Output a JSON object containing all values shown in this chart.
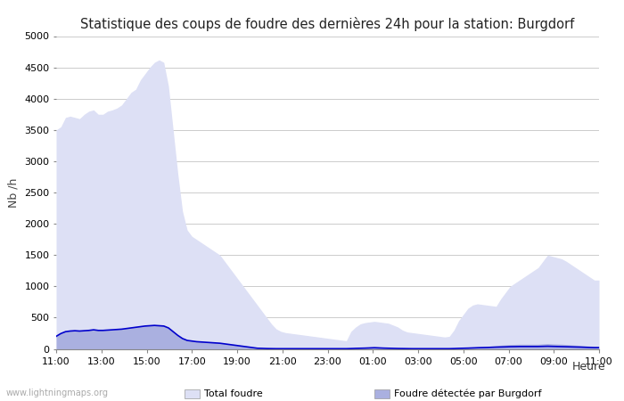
{
  "title": "Statistique des coups de foudre des dernières 24h pour la station: Burgdorf",
  "xlabel": "Heure",
  "ylabel": "Nb /h",
  "ylim": [
    0,
    5000
  ],
  "yticks": [
    0,
    500,
    1000,
    1500,
    2000,
    2500,
    3000,
    3500,
    4000,
    4500,
    5000
  ],
  "x_labels": [
    "11:00",
    "13:00",
    "15:00",
    "17:00",
    "19:00",
    "21:00",
    "23:00",
    "01:00",
    "03:00",
    "05:00",
    "07:00",
    "09:00",
    "11:00"
  ],
  "background_color": "#ffffff",
  "grid_color": "#cccccc",
  "total_foudre_color": "#dde0f5",
  "burgdorf_color": "#aab0e0",
  "moyenne_color": "#0000cc",
  "watermark": "www.lightningmaps.org",
  "total_foudre": [
    3500,
    3550,
    3700,
    3720,
    3700,
    3680,
    3750,
    3800,
    3820,
    3750,
    3750,
    3800,
    3820,
    3850,
    3900,
    4000,
    4100,
    4150,
    4300,
    4400,
    4500,
    4580,
    4620,
    4580,
    4200,
    3500,
    2800,
    2200,
    1900,
    1800,
    1750,
    1700,
    1650,
    1600,
    1550,
    1500,
    1400,
    1300,
    1200,
    1100,
    1000,
    900,
    800,
    700,
    600,
    500,
    400,
    320,
    280,
    260,
    250,
    240,
    230,
    220,
    210,
    200,
    190,
    180,
    170,
    160,
    150,
    140,
    130,
    280,
    350,
    400,
    420,
    430,
    440,
    430,
    420,
    410,
    380,
    350,
    300,
    270,
    260,
    250,
    240,
    230,
    220,
    210,
    200,
    190,
    200,
    300,
    450,
    550,
    650,
    700,
    720,
    710,
    700,
    690,
    680,
    800,
    900,
    1000,
    1050,
    1100,
    1150,
    1200,
    1250,
    1300,
    1400,
    1500,
    1480,
    1460,
    1440,
    1400,
    1350,
    1300,
    1250,
    1200,
    1150,
    1100,
    1100
  ],
  "burgdorf": [
    200,
    250,
    280,
    290,
    295,
    290,
    295,
    300,
    310,
    300,
    300,
    305,
    310,
    315,
    320,
    330,
    340,
    350,
    360,
    370,
    375,
    380,
    375,
    370,
    340,
    280,
    220,
    170,
    140,
    130,
    120,
    115,
    110,
    105,
    100,
    95,
    85,
    75,
    65,
    55,
    45,
    35,
    25,
    15,
    10,
    8,
    6,
    5,
    5,
    5,
    5,
    5,
    5,
    5,
    5,
    5,
    5,
    5,
    5,
    5,
    5,
    5,
    5,
    10,
    15,
    20,
    25,
    30,
    35,
    30,
    25,
    20,
    15,
    10,
    8,
    6,
    5,
    5,
    5,
    5,
    5,
    5,
    5,
    5,
    5,
    8,
    10,
    15,
    20,
    25,
    30,
    35,
    40,
    45,
    50,
    60,
    65,
    70,
    72,
    75,
    75,
    75,
    75,
    75,
    80,
    85,
    80,
    78,
    75,
    70,
    65,
    60,
    55,
    50,
    45,
    40,
    40
  ],
  "moyenne": [
    200,
    245,
    275,
    285,
    290,
    285,
    290,
    295,
    305,
    295,
    295,
    300,
    305,
    310,
    315,
    325,
    335,
    345,
    355,
    365,
    370,
    375,
    370,
    365,
    335,
    275,
    215,
    165,
    135,
    125,
    115,
    110,
    105,
    100,
    95,
    90,
    80,
    70,
    60,
    50,
    40,
    30,
    20,
    10,
    8,
    5,
    4,
    3,
    3,
    3,
    3,
    3,
    3,
    3,
    3,
    3,
    3,
    3,
    3,
    3,
    3,
    3,
    3,
    5,
    8,
    10,
    12,
    15,
    18,
    15,
    12,
    10,
    8,
    6,
    5,
    4,
    3,
    3,
    3,
    3,
    3,
    3,
    3,
    3,
    3,
    5,
    8,
    10,
    12,
    15,
    18,
    20,
    22,
    25,
    28,
    30,
    32,
    35,
    36,
    38,
    38,
    38,
    38,
    38,
    40,
    42,
    40,
    38,
    36,
    34,
    32,
    30,
    28,
    25,
    22,
    20,
    20
  ]
}
